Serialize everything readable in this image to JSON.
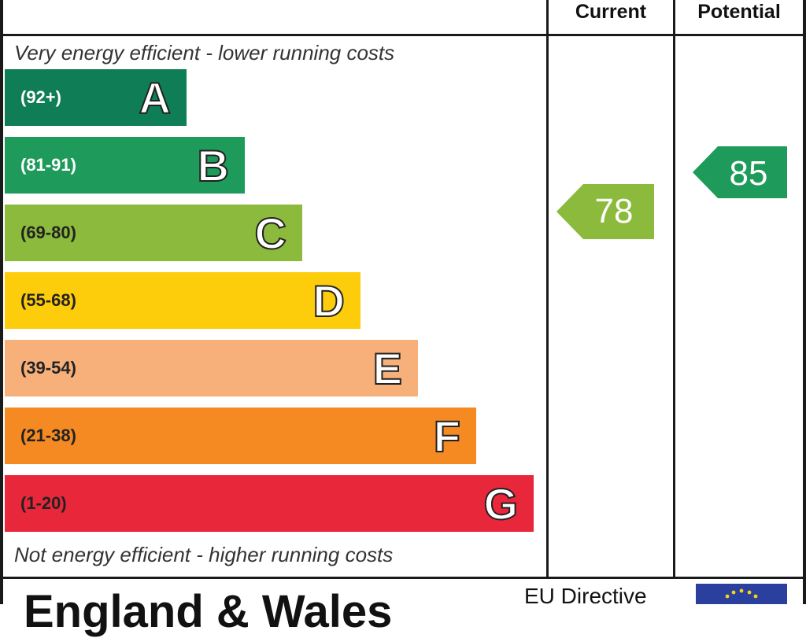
{
  "columns": {
    "current": "Current",
    "potential": "Potential"
  },
  "captions": {
    "top": "Very energy efficient - lower running costs",
    "bottom": "Not energy efficient - higher running costs"
  },
  "chart_data": {
    "type": "bar",
    "categories": [
      "A",
      "B",
      "C",
      "D",
      "E",
      "F",
      "G"
    ],
    "ranges": [
      "(92+)",
      "(81-91)",
      "(69-80)",
      "(55-68)",
      "(39-54)",
      "(21-38)",
      "(1-20)"
    ],
    "colors": [
      "#0f7d55",
      "#1e9b5a",
      "#8bba3c",
      "#fdcc0a",
      "#f7b07a",
      "#f58a23",
      "#e9273a"
    ],
    "range_text_colors": [
      "#ffffff",
      "#ffffff",
      "#222222",
      "#222222",
      "#222222",
      "#222222",
      "#222222"
    ],
    "current": {
      "value": 78,
      "band": "C",
      "color": "#8bba3c"
    },
    "potential": {
      "value": 85,
      "band": "B",
      "color": "#1e9b5a"
    }
  },
  "footer": {
    "title": "England & Wales",
    "eu_directive": "EU Directive"
  }
}
